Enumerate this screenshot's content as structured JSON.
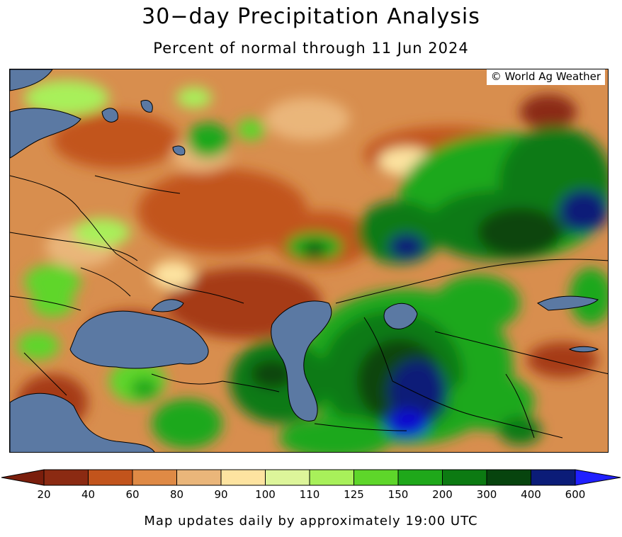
{
  "title": "30−day Precipitation Analysis",
  "subtitle": "Percent of normal through 11 Jun 2024",
  "credit": "© World Ag Weather",
  "footer": "Map updates daily by approximately 19:00 UTC",
  "legend": {
    "ticks": [
      "20",
      "40",
      "60",
      "80",
      "90",
      "100",
      "110",
      "125",
      "150",
      "200",
      "300",
      "400",
      "600"
    ],
    "colors": [
      "#8b2a12",
      "#c2541c",
      "#df8a45",
      "#eab67a",
      "#fde3a0",
      "#ddf59a",
      "#a8f05a",
      "#5ed62a",
      "#1fa81a",
      "#0c7a12",
      "#07440e",
      "#0b1c78",
      "#1010cf"
    ],
    "low_end_color": "#7a1e0c",
    "high_end_color": "#2020ff"
  },
  "map_colors": {
    "water": "#5b79a3",
    "base_dry": "#d99050",
    "border": "#000000"
  }
}
